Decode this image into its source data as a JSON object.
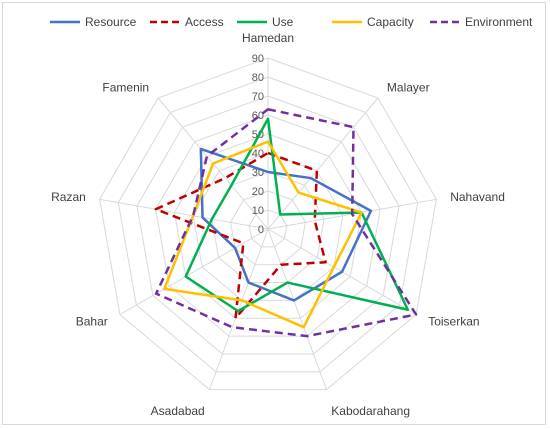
{
  "chart_data": {
    "type": "radar",
    "categories": [
      "Hamedan",
      "Malayer",
      "Nahavand",
      "Toiserkan",
      "Kabodarahang",
      "Asadabad",
      "Bahar",
      "Razan",
      "Famenin"
    ],
    "r_ticks": [
      0,
      10,
      20,
      30,
      40,
      50,
      60,
      70,
      80,
      90
    ],
    "rlim": [
      0,
      90
    ],
    "legend_position": "top",
    "series": [
      {
        "name": "Resource",
        "color": "#4472C4",
        "dash": "solid",
        "values": [
          30,
          35,
          55,
          45,
          40,
          30,
          20,
          35,
          55
        ]
      },
      {
        "name": "Access",
        "color": "#C00000",
        "dash": "dash",
        "values": [
          40,
          40,
          25,
          35,
          20,
          50,
          15,
          60,
          35
        ]
      },
      {
        "name": "Use",
        "color": "#00B050",
        "dash": "solid",
        "values": [
          58,
          10,
          50,
          85,
          30,
          46,
          50,
          30,
          30
        ]
      },
      {
        "name": "Capacity",
        "color": "#FFC000",
        "dash": "solid",
        "values": [
          46,
          25,
          50,
          40,
          55,
          40,
          63,
          40,
          45
        ]
      },
      {
        "name": "Environment",
        "color": "#7030A0",
        "dash": "dash",
        "values": [
          63,
          70,
          45,
          90,
          60,
          55,
          68,
          40,
          50
        ]
      }
    ]
  }
}
